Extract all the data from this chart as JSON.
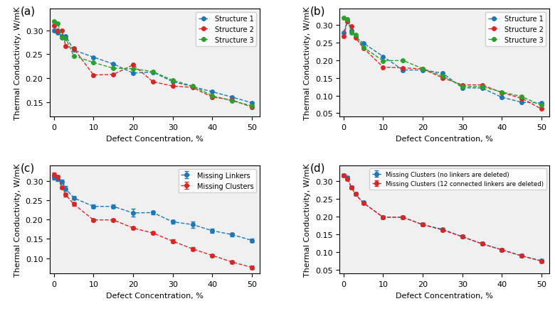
{
  "panel_labels": [
    "(a)",
    "(b)",
    "(c)",
    "(d)"
  ],
  "xlabel": "Defect Concentration, %",
  "ylabel": "Thermal Conductivity, W/mK",
  "colors": {
    "blue": "#1f77b4",
    "red": "#d62728",
    "green": "#2ca02c"
  },
  "panel_a": {
    "legend": [
      "Structure 1",
      "Structure 2",
      "Structure 3"
    ],
    "x": [
      0,
      1,
      2,
      3,
      5,
      10,
      15,
      20,
      25,
      30,
      35,
      40,
      45,
      50
    ],
    "s1_y": [
      0.299,
      0.295,
      0.288,
      0.288,
      0.259,
      0.244,
      0.23,
      0.211,
      0.213,
      0.193,
      0.183,
      0.172,
      0.161,
      0.149
    ],
    "s2_y": [
      0.31,
      0.3,
      0.299,
      0.267,
      0.262,
      0.207,
      0.208,
      0.228,
      0.193,
      0.184,
      0.181,
      0.161,
      0.155,
      0.14
    ],
    "s3_y": [
      0.318,
      0.314,
      0.285,
      0.283,
      0.247,
      0.233,
      0.221,
      0.22,
      0.214,
      0.196,
      0.184,
      0.164,
      0.153,
      0.143
    ],
    "ylim": [
      0.12,
      0.345
    ],
    "yticks": [
      0.15,
      0.2,
      0.25,
      0.3
    ]
  },
  "panel_b": {
    "legend": [
      "Structure 1",
      "Structure 2",
      "Structure 3"
    ],
    "x": [
      0,
      1,
      2,
      3,
      5,
      10,
      15,
      20,
      25,
      30,
      35,
      40,
      45,
      50
    ],
    "s1_y": [
      0.278,
      0.31,
      0.284,
      0.265,
      0.248,
      0.21,
      0.172,
      0.172,
      0.163,
      0.122,
      0.121,
      0.095,
      0.081,
      0.079
    ],
    "s2_y": [
      0.267,
      0.31,
      0.295,
      0.263,
      0.234,
      0.18,
      0.178,
      0.175,
      0.15,
      0.13,
      0.13,
      0.108,
      0.092,
      0.062
    ],
    "s3_y": [
      0.32,
      0.315,
      0.278,
      0.272,
      0.236,
      0.198,
      0.199,
      0.176,
      0.155,
      0.126,
      0.125,
      0.11,
      0.097,
      0.072
    ],
    "ylim": [
      0.04,
      0.345
    ],
    "yticks": [
      0.05,
      0.1,
      0.15,
      0.2,
      0.25,
      0.3
    ]
  },
  "panel_c": {
    "legend": [
      "Missing Linkers",
      "Missing Clusters"
    ],
    "x": [
      0,
      1,
      2,
      3,
      5,
      10,
      15,
      20,
      25,
      30,
      35,
      40,
      45,
      50
    ],
    "ml_y": [
      0.308,
      0.306,
      0.298,
      0.28,
      0.256,
      0.234,
      0.234,
      0.217,
      0.218,
      0.194,
      0.187,
      0.171,
      0.161,
      0.146
    ],
    "mc_y": [
      0.317,
      0.31,
      0.283,
      0.264,
      0.24,
      0.199,
      0.199,
      0.178,
      0.165,
      0.144,
      0.124,
      0.107,
      0.09,
      0.076
    ],
    "ml_yerr": [
      0.005,
      0.006,
      0.005,
      0.006,
      0.005,
      0.005,
      0.005,
      0.01,
      0.005,
      0.005,
      0.008,
      0.005,
      0.005,
      0.005
    ],
    "mc_yerr": [
      0.004,
      0.004,
      0.004,
      0.004,
      0.004,
      0.004,
      0.004,
      0.004,
      0.004,
      0.004,
      0.004,
      0.004,
      0.004,
      0.004
    ],
    "ylim": [
      0.06,
      0.34
    ],
    "yticks": [
      0.1,
      0.15,
      0.2,
      0.25,
      0.3
    ]
  },
  "panel_d": {
    "legend": [
      "Missing Clusters (no linkers are deleted)",
      "Missing Clusters (12 connected linkers are deleted)"
    ],
    "x": [
      0,
      1,
      2,
      3,
      5,
      10,
      15,
      20,
      25,
      30,
      35,
      40,
      45,
      50
    ],
    "mc_y": [
      0.317,
      0.31,
      0.283,
      0.264,
      0.24,
      0.199,
      0.199,
      0.178,
      0.165,
      0.144,
      0.124,
      0.107,
      0.09,
      0.076
    ],
    "mc12_y": [
      0.316,
      0.307,
      0.283,
      0.264,
      0.239,
      0.199,
      0.199,
      0.178,
      0.163,
      0.144,
      0.124,
      0.107,
      0.09,
      0.075
    ],
    "mc_yerr": [
      0.004,
      0.004,
      0.004,
      0.004,
      0.004,
      0.004,
      0.004,
      0.004,
      0.004,
      0.004,
      0.004,
      0.004,
      0.004,
      0.004
    ],
    "mc12_yerr": [
      0.004,
      0.004,
      0.004,
      0.004,
      0.004,
      0.004,
      0.004,
      0.004,
      0.004,
      0.004,
      0.004,
      0.004,
      0.004,
      0.004
    ],
    "ylim": [
      0.04,
      0.345
    ],
    "yticks": [
      0.05,
      0.1,
      0.15,
      0.2,
      0.25,
      0.3
    ]
  },
  "background_color": "#f0f0f0",
  "figure_facecolor": "#ffffff"
}
